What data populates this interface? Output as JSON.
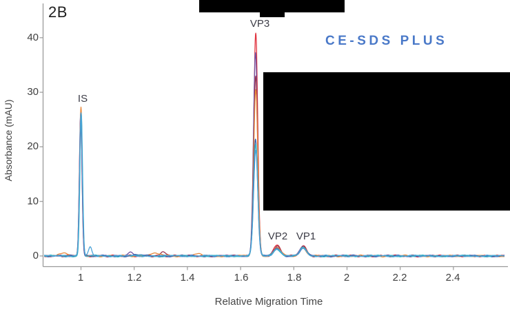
{
  "figure": {
    "panel_label": "2B",
    "watermark": "CE-SDS PLUS",
    "watermark_color": "#4a79c8"
  },
  "redactions": [
    {
      "name": "top-title-bar",
      "note": "blacked-out region"
    },
    {
      "name": "right-legend-box",
      "note": "blacked-out region"
    }
  ],
  "chart_data": {
    "type": "line",
    "title": "",
    "xlabel": "Relative Migration Time",
    "ylabel": "Absorbance (mAU)",
    "xlim": [
      0.86,
      2.59
    ],
    "ylim": [
      -1.95,
      46
    ],
    "xticks": [
      1,
      1.2,
      1.4,
      1.6,
      1.8,
      2,
      2.2,
      2.4
    ],
    "yticks": [
      40,
      30,
      20,
      10,
      0
    ],
    "grid": false,
    "legend": "none (overlaid replicate traces)",
    "axis_color": "#9a9a9a",
    "peak_labels": [
      {
        "label": "IS",
        "x": 1.0,
        "y_mau": 28.5
      },
      {
        "label": "VP3",
        "x": 1.657,
        "y_mau": 43.5
      },
      {
        "label": "VP2",
        "x": 1.737,
        "y_mau": 3.3
      },
      {
        "label": "VP1",
        "x": 1.835,
        "y_mau": 3.3
      }
    ],
    "peak_format": [
      "center_rmt",
      "height_mau",
      "sigma_rmt"
    ],
    "series": [
      {
        "name": "run-red",
        "color": "#e0323e",
        "peaks": [
          [
            0.999,
            26.0,
            0.005
          ],
          [
            1.657,
            41.0,
            0.0075
          ],
          [
            1.737,
            1.9,
            0.013
          ],
          [
            1.835,
            1.9,
            0.012
          ]
        ]
      },
      {
        "name": "run-purple",
        "color": "#6f4fa0",
        "peaks": [
          [
            0.999,
            26.3,
            0.005
          ],
          [
            1.185,
            0.75,
            0.01
          ],
          [
            1.656,
            37.2,
            0.0075
          ],
          [
            1.737,
            1.7,
            0.013
          ],
          [
            1.835,
            1.7,
            0.012
          ]
        ]
      },
      {
        "name": "run-maroon",
        "color": "#9a3550",
        "peaks": [
          [
            1.0,
            25.9,
            0.005
          ],
          [
            1.31,
            0.7,
            0.01
          ],
          [
            1.657,
            33.0,
            0.0076
          ],
          [
            1.738,
            1.8,
            0.013
          ],
          [
            1.836,
            1.8,
            0.012
          ]
        ]
      },
      {
        "name": "run-orange",
        "color": "#e8883a",
        "peaks": [
          [
            0.93,
            0.55,
            0.02
          ],
          [
            1.0,
            27.2,
            0.005
          ],
          [
            1.28,
            0.4,
            0.022
          ],
          [
            1.44,
            0.3,
            0.015
          ],
          [
            1.657,
            30.5,
            0.0078
          ],
          [
            1.738,
            1.5,
            0.013
          ],
          [
            1.835,
            1.5,
            0.012
          ]
        ]
      },
      {
        "name": "run-darkblue",
        "color": "#3a62b0",
        "peaks": [
          [
            1.0,
            25.7,
            0.005
          ],
          [
            1.21,
            0.3,
            0.015
          ],
          [
            1.656,
            21.5,
            0.008
          ],
          [
            1.737,
            1.3,
            0.013
          ],
          [
            1.835,
            1.4,
            0.012
          ]
        ]
      },
      {
        "name": "run-teal",
        "color": "#35b4c8",
        "peaks": [
          [
            1.001,
            26.0,
            0.005
          ],
          [
            1.657,
            20.3,
            0.008
          ],
          [
            1.737,
            1.3,
            0.013
          ],
          [
            1.836,
            1.5,
            0.012
          ]
        ]
      },
      {
        "name": "run-lightblue",
        "color": "#4ba3d8",
        "peaks": [
          [
            1.0,
            26.2,
            0.0052
          ],
          [
            1.035,
            1.6,
            0.006
          ],
          [
            1.657,
            19.3,
            0.008
          ],
          [
            1.737,
            1.25,
            0.013
          ],
          [
            1.835,
            1.55,
            0.012
          ]
        ]
      }
    ]
  }
}
